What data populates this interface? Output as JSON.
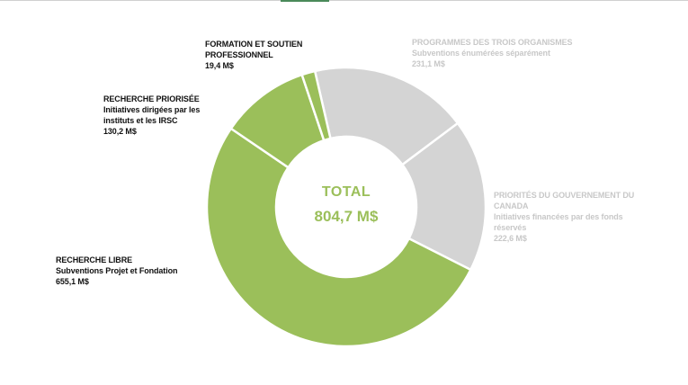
{
  "colors": {
    "recherche": "#9bbf5a",
    "gouvernement": "#d4d4d4",
    "separator": "#ffffff",
    "dark_text": "#111111",
    "grey_text": "#c8c8c8"
  },
  "chart_data": {
    "type": "pie",
    "donut": true,
    "total_label": "TOTAL",
    "total_value": "804,7 M$",
    "slices": [
      {
        "category": "PROGRAMMES DES TROIS ORGANISMES",
        "description": "Subventions énumérées séparément",
        "value": 231.1,
        "value_label": "231,1 M$",
        "color": "#d4d4d4"
      },
      {
        "category": "PRIORITÉS DU GOUVERNEMENT DU CANADA",
        "description": "Initiatives financées par des fonds réservés",
        "value": 222.6,
        "value_label": "222,6 M$",
        "color": "#d4d4d4"
      },
      {
        "category": "RECHERCHE LIBRE",
        "description": "Subventions Projet et Fondation",
        "value": 655.1,
        "value_label": "655,1 M$",
        "color": "#9bbf5a"
      },
      {
        "category": "RECHERCHE PRIORISÉE",
        "description": "Initiatives dirigées par les instituts et les IRSC",
        "value": 130.2,
        "value_label": "130,2 M$",
        "color": "#9bbf5a"
      },
      {
        "category": "FORMATION ET SOUTIEN PROFESSIONNEL",
        "description": "",
        "value": 19.4,
        "value_label": "19,4 M$",
        "color": "#9bbf5a"
      }
    ]
  }
}
